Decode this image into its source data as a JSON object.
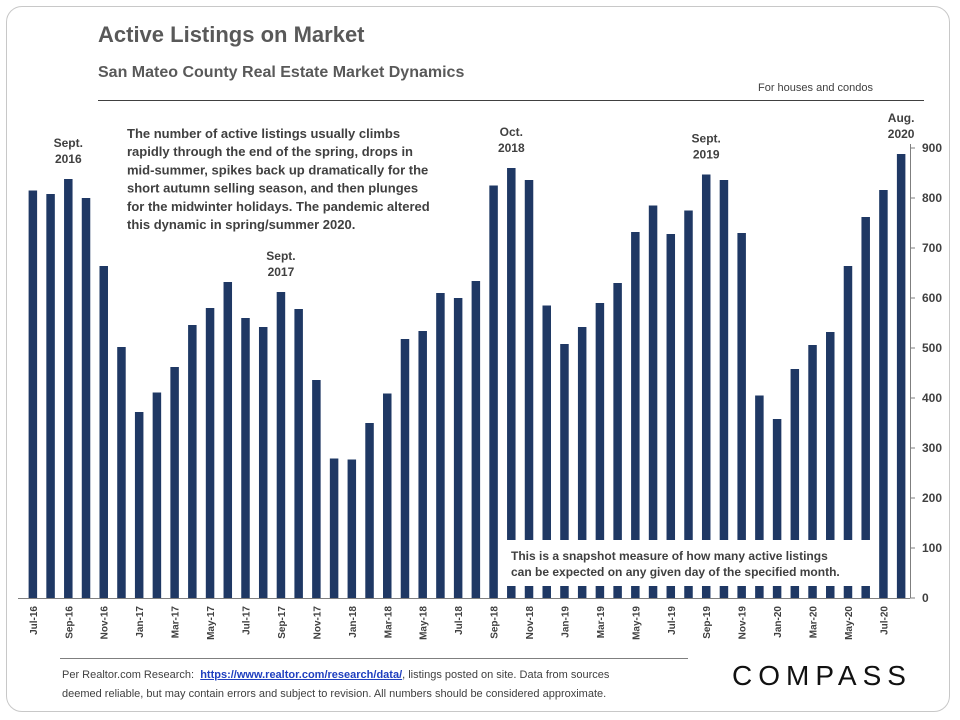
{
  "header": {
    "title": "Active Listings on Market",
    "subtitle": "San Mateo County Real Estate Market Dynamics",
    "note": "For houses and condos"
  },
  "annotations": {
    "main": "The number of active listings usually climbs rapidly through the end of the spring, drops in mid-summer, spikes back up dramatically for the short autumn selling season, and then plunges for the midwinter holidays. The pandemic altered this dynamic in spring/summer 2020.",
    "snapshot": "This is a snapshot measure of how many active listings can be expected on any given day of the specified month.",
    "peaks": [
      {
        "index": 2,
        "line1": "Sept.",
        "line2": "2016"
      },
      {
        "index": 14,
        "line1": "Sept.",
        "line2": "2017"
      },
      {
        "index": 27,
        "line1": "Oct.",
        "line2": "2018"
      },
      {
        "index": 38,
        "line1": "Sept.",
        "line2": "2019"
      },
      {
        "index": 49,
        "line1": "Aug.",
        "line2": "2020"
      }
    ]
  },
  "footer": {
    "prefix": "Per Realtor.com Research:",
    "link": "https://www.realtor.com/research/data/",
    "line1_suffix": ", listings posted on site. Data from sources",
    "line2": "deemed reliable, but may contain errors and subject to revision.  All numbers should be considered approximate.",
    "brand": "COMPASS"
  },
  "colors": {
    "bar": "#1f3864",
    "text": "#404040",
    "title": "#595959",
    "brand": "#111111"
  },
  "chart_data": {
    "type": "bar",
    "categories": [
      "Jul-16",
      "Aug-16",
      "Sep-16",
      "Oct-16",
      "Nov-16",
      "Dec-16",
      "Jan-17",
      "Feb-17",
      "Mar-17",
      "Apr-17",
      "May-17",
      "Jun-17",
      "Jul-17",
      "Aug-17",
      "Sep-17",
      "Oct-17",
      "Nov-17",
      "Dec-17",
      "Jan-18",
      "Feb-18",
      "Mar-18",
      "Apr-18",
      "May-18",
      "Jun-18",
      "Jul-18",
      "Aug-18",
      "Sep-18",
      "Oct-18",
      "Nov-18",
      "Dec-18",
      "Jan-19",
      "Feb-19",
      "Mar-19",
      "Apr-19",
      "May-19",
      "Jun-19",
      "Jul-19",
      "Aug-19",
      "Sep-19",
      "Oct-19",
      "Nov-19",
      "Dec-19",
      "Jan-20",
      "Feb-20",
      "Mar-20",
      "Apr-20",
      "May-20",
      "Jun-20",
      "Jul-20",
      "Aug-20"
    ],
    "tick_labels": [
      "Jul-16",
      "",
      "Sep-16",
      "",
      "Nov-16",
      "",
      "Jan-17",
      "",
      "Mar-17",
      "",
      "May-17",
      "",
      "Jul-17",
      "",
      "Sep-17",
      "",
      "Nov-17",
      "",
      "Jan-18",
      "",
      "Mar-18",
      "",
      "May-18",
      "",
      "Jul-18",
      "",
      "Sep-18",
      "",
      "Nov-18",
      "",
      "Jan-19",
      "",
      "Mar-19",
      "",
      "May-19",
      "",
      "Jul-19",
      "",
      "Sep-19",
      "",
      "Nov-19",
      "",
      "Jan-20",
      "",
      "Mar-20",
      "",
      "May-20",
      "",
      "Jul-20",
      ""
    ],
    "values": [
      815,
      808,
      838,
      800,
      664,
      502,
      372,
      411,
      462,
      546,
      580,
      632,
      560,
      542,
      612,
      578,
      436,
      279,
      277,
      350,
      409,
      518,
      534,
      610,
      600,
      634,
      825,
      860,
      836,
      585,
      508,
      542,
      590,
      630,
      732,
      785,
      728,
      775,
      847,
      836,
      730,
      405,
      358,
      458,
      506,
      532,
      664,
      762,
      816,
      888
    ],
    "ylim": [
      0,
      900
    ],
    "yticks": [
      0,
      100,
      200,
      300,
      400,
      500,
      600,
      700,
      800,
      900
    ],
    "y_axis_position": "right",
    "grid": false,
    "xlabel": "",
    "ylabel": ""
  }
}
